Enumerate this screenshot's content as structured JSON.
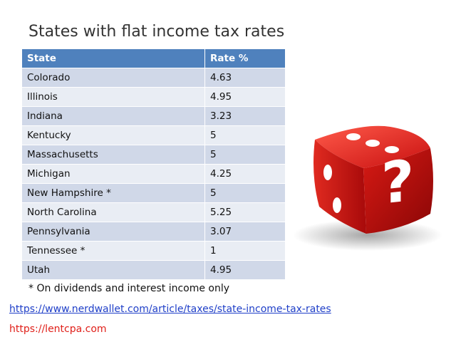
{
  "slide": {
    "title": "States with flat income tax rates",
    "table": {
      "headers": {
        "state": "State",
        "rate": "Rate %"
      },
      "rows": [
        {
          "state": "Colorado",
          "rate": "4.63"
        },
        {
          "state": "Illinois",
          "rate": "4.95"
        },
        {
          "state": "Indiana",
          "rate": "3.23"
        },
        {
          "state": "Kentucky",
          "rate": "5"
        },
        {
          "state": "Massachusetts",
          "rate": "5"
        },
        {
          "state": "Michigan",
          "rate": "4.25"
        },
        {
          "state": "New Hampshire *",
          "rate": "5"
        },
        {
          "state": "North Carolina",
          "rate": "5.25"
        },
        {
          "state": "Pennsylvania",
          "rate": "3.07"
        },
        {
          "state": "Tennessee *",
          "rate": "1"
        },
        {
          "state": "Utah",
          "rate": "4.95"
        }
      ]
    },
    "footnote": "* On dividends and interest income only",
    "links": {
      "nerdwallet": "https://www.nerdwallet.com/article/taxes/state-income-tax-rates",
      "lentcpa": "https://lentcpa.com"
    },
    "image": {
      "icon": "red-question-dice-icon",
      "glyph": "?",
      "color": "#d01818"
    }
  }
}
